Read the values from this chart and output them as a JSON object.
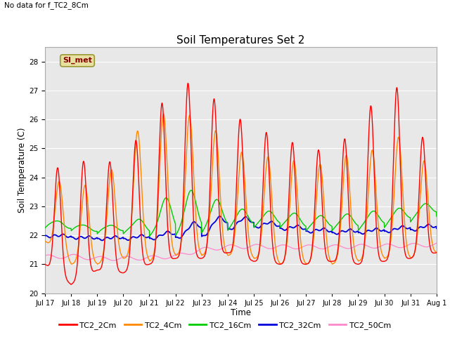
{
  "title": "Soil Temperatures Set 2",
  "subtitle": "No data for f_TC2_8Cm",
  "xlabel": "Time",
  "ylabel": "Soil Temperature (C)",
  "ylim": [
    20.0,
    28.5
  ],
  "yticks": [
    20.0,
    21.0,
    22.0,
    23.0,
    24.0,
    25.0,
    26.0,
    27.0,
    28.0
  ],
  "bg_color": "#e8e8e8",
  "legend_label": "SI_met",
  "legend_box_facecolor": "#e8e0a0",
  "legend_box_edgecolor": "#999933",
  "legend_text_color": "#880000",
  "series_colors": {
    "TC2_2Cm": "#ff0000",
    "TC2_4Cm": "#ff8800",
    "TC2_16Cm": "#00cc00",
    "TC2_32Cm": "#0000dd",
    "TC2_50Cm": "#ff88cc"
  },
  "xtick_labels": [
    "Jul 17",
    "Jul 18",
    "Jul 19",
    "Jul 20",
    "Jul 21",
    "Jul 22",
    "Jul 23",
    "Jul 24",
    "Jul 25",
    "Jul 26",
    "Jul 27",
    "Jul 28",
    "Jul 29",
    "Jul 30",
    "Jul 31",
    "Aug 1"
  ]
}
